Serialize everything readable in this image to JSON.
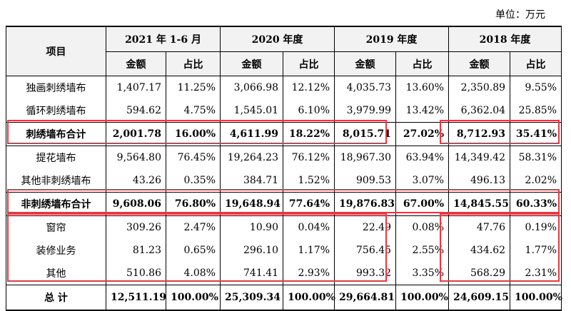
{
  "unit_label": "单位：万元",
  "headers": {
    "item": "项目",
    "periods": [
      "2021 年 1-6 月",
      "2020 年度",
      "2019 年度",
      "2018 年度"
    ],
    "amount": "金额",
    "ratio": "占比"
  },
  "rows": [
    {
      "name": "独画刺绣墙布",
      "values": [
        "1,407.17",
        "11.25%",
        "3,066.98",
        "12.12%",
        "4,035.73",
        "13.60%",
        "2,350.89",
        "9.55%"
      ]
    },
    {
      "name": "循环刺绣墙布",
      "values": [
        "594.62",
        "4.75%",
        "1,545.01",
        "6.10%",
        "3,979.99",
        "13.42%",
        "6,362.04",
        "25.85%"
      ]
    },
    {
      "name": "刺绣墙布合计",
      "values": [
        "2,001.78",
        "16.00%",
        "4,611.99",
        "18.22%",
        "8,015.71",
        "27.02%",
        "8,712.93",
        "35.41%"
      ]
    },
    {
      "name": "提花墙布",
      "values": [
        "9,564.80",
        "76.45%",
        "19,264.23",
        "76.12%",
        "18,967.30",
        "63.94%",
        "14,349.42",
        "58.31%"
      ]
    },
    {
      "name": "其他非刺绣墙布",
      "values": [
        "43.26",
        "0.35%",
        "384.71",
        "1.52%",
        "909.53",
        "3.07%",
        "496.13",
        "2.02%"
      ]
    },
    {
      "name": "非刺绣墙布合计",
      "values": [
        "9,608.06",
        "76.80%",
        "19,648.94",
        "77.64%",
        "19,876.83",
        "67.00%",
        "14,845.55",
        "60.33%"
      ]
    },
    {
      "name": "窗帘",
      "values": [
        "309.26",
        "2.47%",
        "10.90",
        "0.04%",
        "22.49",
        "0.08%",
        "47.76",
        "0.19%"
      ]
    },
    {
      "name": "装修业务",
      "values": [
        "81.23",
        "0.65%",
        "296.10",
        "1.17%",
        "756.45",
        "2.55%",
        "434.62",
        "1.77%"
      ]
    },
    {
      "name": "其他",
      "values": [
        "510.86",
        "4.08%",
        "741.41",
        "2.93%",
        "993.32",
        "3.35%",
        "568.29",
        "2.31%"
      ]
    },
    {
      "name": "总 计",
      "values": [
        "12,511.19",
        "100.00%",
        "25,309.34",
        "100.00%",
        "29,664.81",
        "100.00%",
        "24,609.15",
        "100.00%"
      ]
    }
  ],
  "colors": {
    "highlight_box": "#e53945",
    "header_bg": "#f2f2f2"
  }
}
